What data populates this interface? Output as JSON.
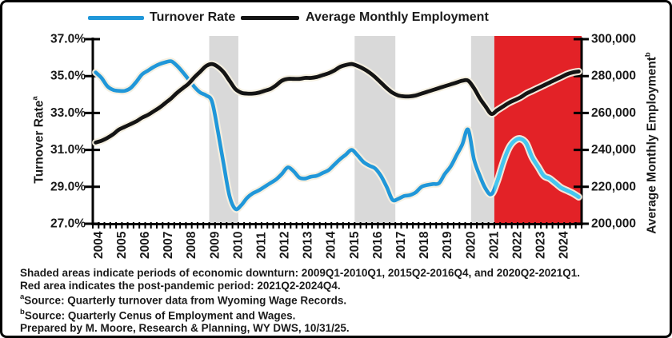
{
  "legend": {
    "turnover_label": "Turnover Rate",
    "employment_label": "Average Monthly Employment"
  },
  "axes": {
    "left_title": "Turnover Rate",
    "left_title_sup": "a",
    "right_title": "Average Monthly Employment",
    "right_title_sup": "b"
  },
  "footer": {
    "line1": "Shaded areas indicate periods of economic downturn: 2009Q1-2010Q1, 2015Q2-2016Q4, and 2020Q2-2021Q1.",
    "line2": "Red area indicates the post-pandemic period: 2021Q2-2024Q4.",
    "source_a_sup": "a",
    "source_a_text": "Source: Quarterly turnover data from Wyoming Wage Records.",
    "source_b_sup": "b",
    "source_b_text": "Source: Quarterly Cenus of Employment and Wages.",
    "prepared": "Prepared by M. Moore, Research & Planning, WY DWS, 10/31/25."
  },
  "colors": {
    "turnover": "#2097D9",
    "turnover_post_pandemic": "#45C7F0",
    "employment": "#141414",
    "halo": "#F4EFE0",
    "downturn_band": "#D9D9D9",
    "post_pandemic_area": "#E32227",
    "axis": "#000000"
  },
  "chart_data": {
    "type": "line",
    "frequency": "quarterly",
    "x_start": "2004Q1",
    "x_end": "2024Q4",
    "x_axis": {
      "years": [
        "2004",
        "2005",
        "2006",
        "2007",
        "2008",
        "2009",
        "2010",
        "2011",
        "2012",
        "2013",
        "2014",
        "2015",
        "2016",
        "2017",
        "2018",
        "2019",
        "2020",
        "2021",
        "2022",
        "2023",
        "2024"
      ]
    },
    "left_axis": {
      "label": "Turnover Rate",
      "footnote": "a",
      "range": [
        27,
        37
      ],
      "tick_step": 2,
      "ticks": [
        "37.0%",
        "35.0%",
        "33.0%",
        "31.0%",
        "29.0%",
        "27.0%"
      ]
    },
    "right_axis": {
      "label": "Average Monthly Employment",
      "footnote": "b",
      "range": [
        200000,
        300000
      ],
      "tick_step": 20000,
      "ticks": [
        "300,000",
        "280,000",
        "260,000",
        "240,000",
        "220,000",
        "200,000"
      ]
    },
    "shaded_periods": [
      {
        "from": "2009Q1",
        "to": "2010Q1"
      },
      {
        "from": "2015Q2",
        "to": "2016Q4"
      },
      {
        "from": "2020Q2",
        "to": "2021Q1"
      }
    ],
    "red_period": {
      "from": "2021Q2",
      "to": "2024Q4"
    },
    "series": [
      {
        "name": "Turnover Rate",
        "axis": "left",
        "unit": "percent",
        "values": [
          35.2,
          34.9,
          34.45,
          34.25,
          34.2,
          34.2,
          34.35,
          34.7,
          35.1,
          35.3,
          35.5,
          35.65,
          35.75,
          35.8,
          35.55,
          35.2,
          34.8,
          34.4,
          34.1,
          33.95,
          33.6,
          32.0,
          30.2,
          28.5,
          27.8,
          28.0,
          28.4,
          28.65,
          28.8,
          29.0,
          29.2,
          29.4,
          29.7,
          30.05,
          29.85,
          29.5,
          29.45,
          29.55,
          29.6,
          29.75,
          29.9,
          30.2,
          30.5,
          30.75,
          31.0,
          30.7,
          30.35,
          30.15,
          30.0,
          29.6,
          29.0,
          28.3,
          28.35,
          28.5,
          28.55,
          28.7,
          29.0,
          29.1,
          29.15,
          29.2,
          29.7,
          30.1,
          30.7,
          31.3,
          32.1,
          30.5,
          29.6,
          28.9,
          28.6,
          29.3,
          30.3,
          31.1,
          31.5,
          31.6,
          31.35,
          30.6,
          30.1,
          29.6,
          29.45,
          29.2,
          28.95,
          28.8,
          28.65,
          28.45
        ]
      },
      {
        "name": "Average Monthly Employment",
        "axis": "right",
        "unit": "persons",
        "values": [
          244000,
          245000,
          246500,
          248500,
          251000,
          252500,
          254000,
          255500,
          257500,
          259000,
          261000,
          263000,
          265500,
          268000,
          271000,
          273500,
          276000,
          279500,
          282500,
          285500,
          286500,
          285000,
          282000,
          277500,
          273000,
          271000,
          270500,
          270500,
          271000,
          272000,
          273000,
          275000,
          277500,
          278500,
          278500,
          278500,
          279000,
          279000,
          279500,
          280500,
          281500,
          283000,
          285000,
          286000,
          286500,
          285500,
          284000,
          282000,
          279500,
          276500,
          273500,
          271000,
          269500,
          269000,
          269000,
          269500,
          270500,
          271500,
          272500,
          273500,
          274500,
          275500,
          276500,
          277500,
          277500,
          273500,
          268000,
          263500,
          259500,
          261500,
          263500,
          265500,
          267000,
          268500,
          270500,
          272000,
          273500,
          275000,
          276500,
          278000,
          279500,
          281000,
          282000,
          282500
        ]
      }
    ]
  }
}
